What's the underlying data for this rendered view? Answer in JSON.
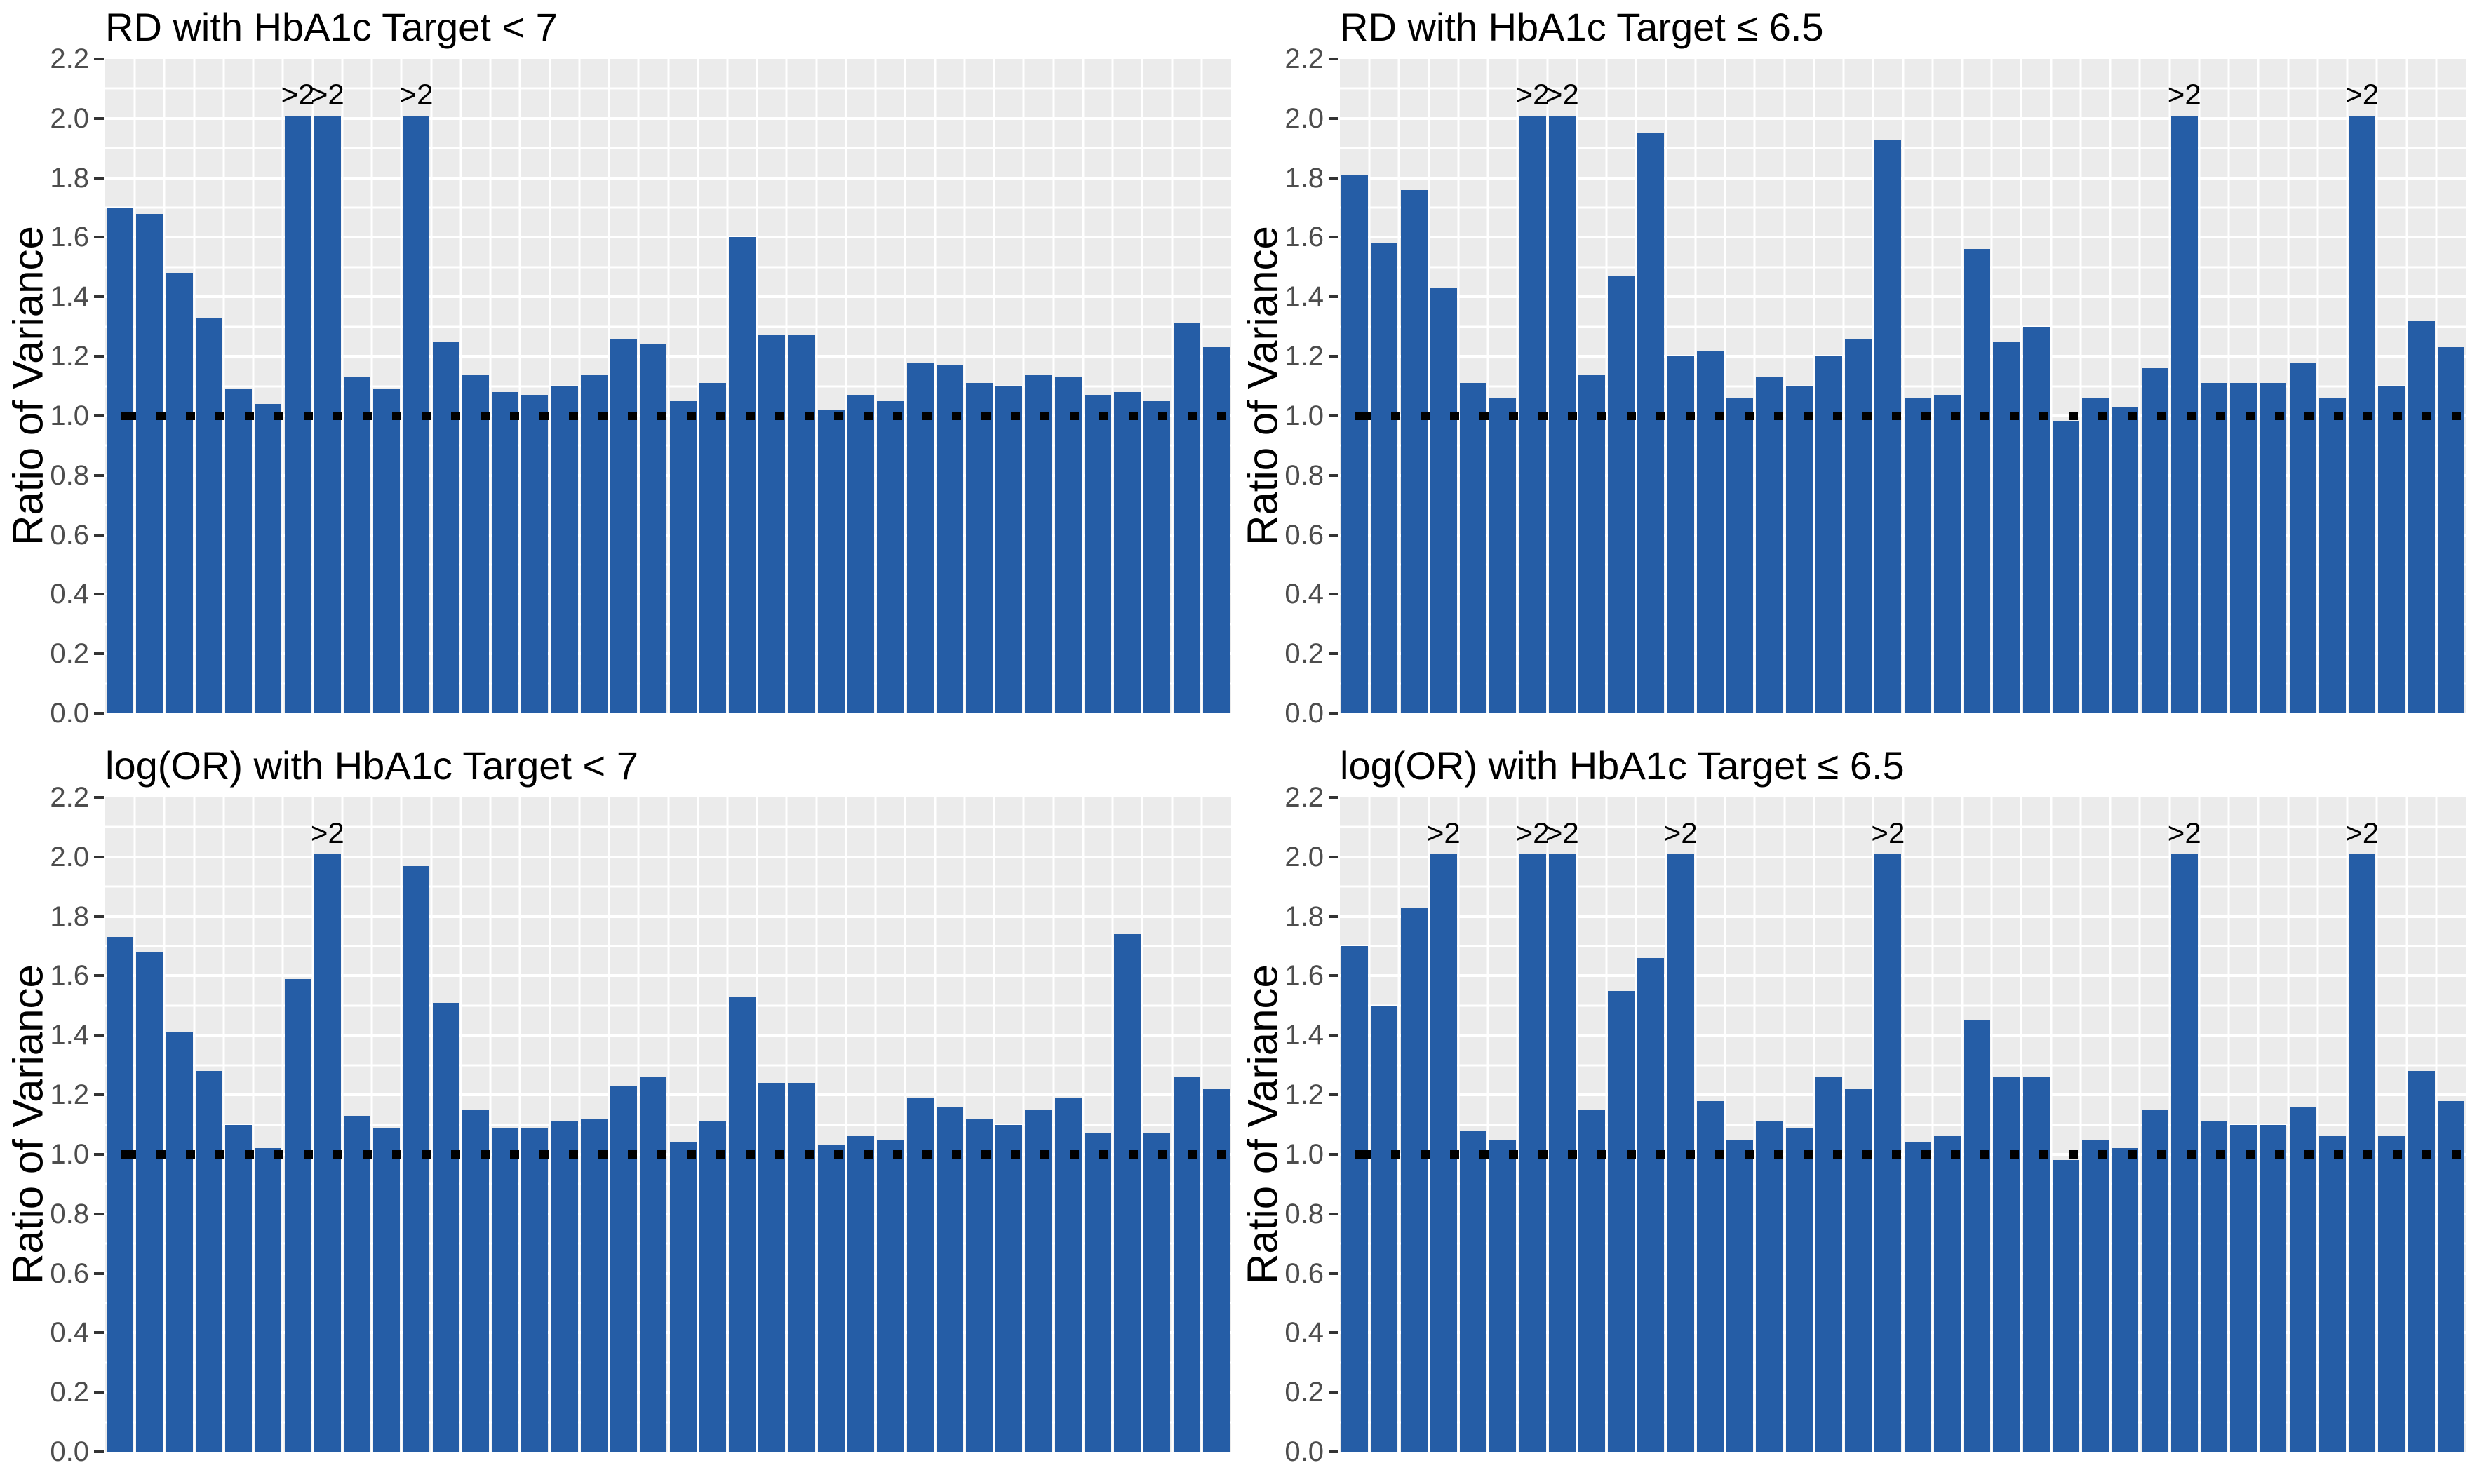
{
  "figure": {
    "background": "#ffffff",
    "panel_background": "#EBEBEB",
    "gridline_color": "#ffffff",
    "bar_color": "#255DA6",
    "tick_label_color": "#4D4D4D",
    "reference_line": {
      "value": 1.0,
      "color": "#000000",
      "style": "dotted"
    },
    "ylabel": "Ratio of Variance",
    "ylim": [
      0,
      2.2
    ],
    "y_ticks": [
      "0.0",
      "0.2",
      "0.4",
      "0.6",
      "0.8",
      "1.0",
      "1.2",
      "1.4",
      "1.6",
      "1.8",
      "2.0",
      "2.2"
    ],
    "cap_label": ">2",
    "x_axis": "none (one bar per study, unlabeled)"
  },
  "chart_data": [
    {
      "type": "bar",
      "title": "RD with HbA1c Target < 7",
      "ylabel": "Ratio of Variance",
      "ylim": [
        0,
        2.2
      ],
      "reference_line": 1.0,
      "cap_label": ">2",
      "values": [
        1.7,
        1.68,
        1.48,
        1.33,
        1.09,
        1.04,
        2.01,
        2.01,
        1.13,
        1.09,
        2.01,
        1.25,
        1.14,
        1.08,
        1.07,
        1.1,
        1.14,
        1.26,
        1.24,
        1.05,
        1.11,
        1.6,
        1.27,
        1.27,
        1.02,
        1.07,
        1.05,
        1.18,
        1.17,
        1.11,
        1.1,
        1.14,
        1.13,
        1.07,
        1.08,
        1.05,
        1.31,
        1.23
      ],
      "capped_indices": [
        6,
        7,
        10
      ]
    },
    {
      "type": "bar",
      "title": "RD with HbA1c Target ≤ 6.5",
      "ylabel": "Ratio of Variance",
      "ylim": [
        0,
        2.2
      ],
      "reference_line": 1.0,
      "cap_label": ">2",
      "values": [
        1.81,
        1.58,
        1.76,
        1.43,
        1.11,
        1.06,
        2.01,
        2.01,
        1.14,
        1.47,
        1.95,
        1.2,
        1.22,
        1.06,
        1.13,
        1.1,
        1.2,
        1.26,
        1.93,
        1.06,
        1.07,
        1.56,
        1.25,
        1.3,
        0.98,
        1.06,
        1.03,
        1.16,
        2.01,
        1.11,
        1.11,
        1.11,
        1.18,
        1.06,
        2.01,
        1.1,
        1.32,
        1.23
      ],
      "capped_indices": [
        6,
        7,
        28,
        34
      ]
    },
    {
      "type": "bar",
      "title": "log(OR) with HbA1c Target < 7",
      "ylabel": "Ratio of Variance",
      "ylim": [
        0,
        2.2
      ],
      "reference_line": 1.0,
      "cap_label": ">2",
      "values": [
        1.73,
        1.68,
        1.41,
        1.28,
        1.1,
        1.02,
        1.59,
        2.01,
        1.13,
        1.09,
        1.97,
        1.51,
        1.15,
        1.09,
        1.09,
        1.11,
        1.12,
        1.23,
        1.26,
        1.04,
        1.11,
        1.53,
        1.24,
        1.24,
        1.03,
        1.06,
        1.05,
        1.19,
        1.16,
        1.12,
        1.1,
        1.15,
        1.19,
        1.07,
        1.74,
        1.07,
        1.26,
        1.22
      ],
      "capped_indices": [
        7
      ]
    },
    {
      "type": "bar",
      "title": "log(OR) with HbA1c Target ≤ 6.5",
      "ylabel": "Ratio of Variance",
      "ylim": [
        0,
        2.2
      ],
      "reference_line": 1.0,
      "cap_label": ">2",
      "values": [
        1.7,
        1.5,
        1.83,
        2.01,
        1.08,
        1.05,
        2.01,
        2.01,
        1.15,
        1.55,
        1.66,
        2.01,
        1.18,
        1.05,
        1.11,
        1.09,
        1.26,
        1.22,
        2.01,
        1.04,
        1.06,
        1.45,
        1.26,
        1.26,
        0.98,
        1.05,
        1.02,
        1.15,
        2.01,
        1.11,
        1.1,
        1.1,
        1.16,
        1.06,
        2.01,
        1.06,
        1.28,
        1.18
      ],
      "capped_indices": [
        3,
        6,
        7,
        11,
        18,
        28,
        34
      ]
    }
  ]
}
